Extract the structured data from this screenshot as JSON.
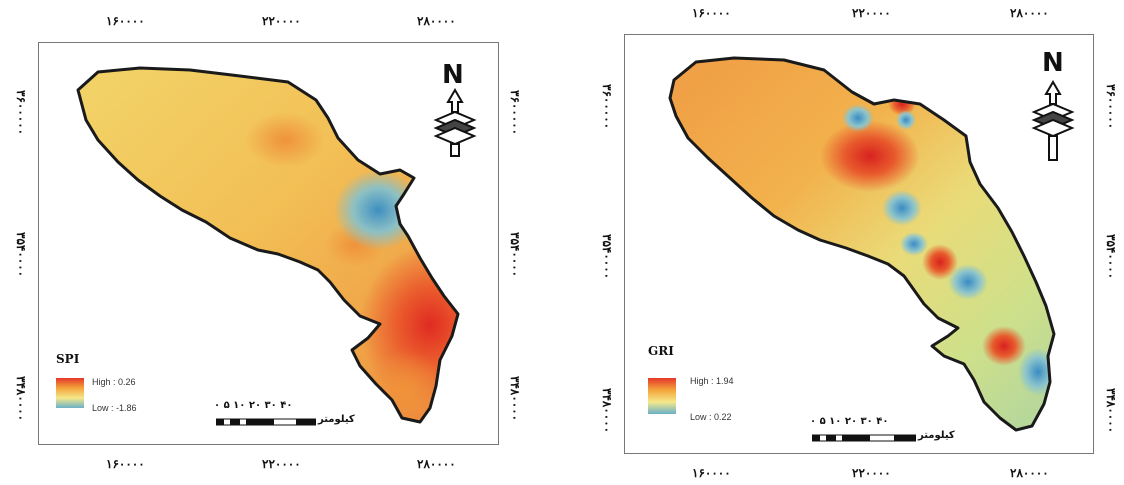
{
  "panels": [
    {
      "legend_title": "SPI",
      "legend_high": "High : 0.26",
      "legend_low": "Low : -1.86",
      "ramp_colors": [
        "#e5372a",
        "#f3a43a",
        "#f5e88a",
        "#6ab0c8"
      ],
      "x_ticks": [
        "۱۶۰۰۰۰",
        "۲۲۰۰۰۰",
        "۲۸۰۰۰۰"
      ],
      "y_ticks": [
        "۳۶۰۰۰۰۰",
        "۳۵۴۰۰۰۰",
        "۳۴۸۰۰۰۰"
      ],
      "scale_numbers": "۰ ۵ ۱۰   ۲۰   ۳۰   ۴۰",
      "scale_unit": "کیلومتر",
      "north_label": "N"
    },
    {
      "legend_title": "GRI",
      "legend_high": "High : 1.94",
      "legend_low": "Low : 0.22",
      "ramp_colors": [
        "#e5372a",
        "#f3a43a",
        "#f5e88a",
        "#6ab0c8"
      ],
      "x_ticks": [
        "۱۶۰۰۰۰",
        "۲۲۰۰۰۰",
        "۲۸۰۰۰۰"
      ],
      "y_ticks": [
        "۳۶۰۰۰۰۰",
        "۳۵۴۰۰۰۰",
        "۳۴۸۰۰۰۰"
      ],
      "scale_numbers": "۰ ۵ ۱۰   ۲۰   ۳۰   ۴۰",
      "scale_unit": "کیلومتر",
      "north_label": "N"
    }
  ]
}
